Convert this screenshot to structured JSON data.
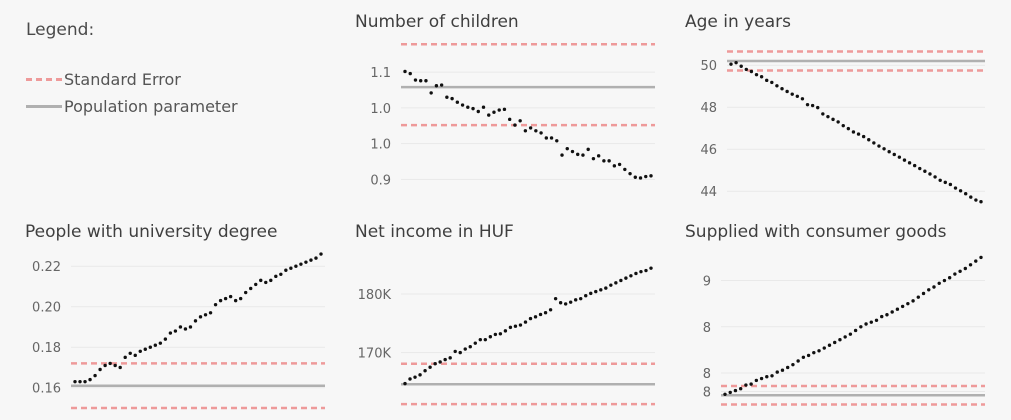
{
  "legend": {
    "title": "Legend:",
    "items": [
      {
        "label": "Standard Error",
        "style": "dashed",
        "color": "#ee9a9a"
      },
      {
        "label": "Population parameter",
        "style": "solid",
        "color": "#b0b0b0"
      }
    ]
  },
  "colors": {
    "background": "#f7f7f7",
    "gridline": "#e9e9e9",
    "se_line": "#ee9a9a",
    "pop_line": "#b0b0b0",
    "points": "#111111"
  },
  "chart_data": [
    {
      "type": "scatter",
      "title": "Number of children",
      "ylim": [
        0.86,
        1.095
      ],
      "yticks": [
        0.9,
        0.95,
        1.0,
        1.05
      ],
      "yticklabels": [
        "0.9",
        "1.0",
        "1.0",
        "1.1"
      ],
      "population_parameter": 1.029,
      "standard_error": [
        0.976,
        1.089
      ],
      "points": [
        1.051,
        1.048,
        1.039,
        1.038,
        1.038,
        1.021,
        1.031,
        1.032,
        1.015,
        1.013,
        1.008,
        1.004,
        1.001,
        0.999,
        0.995,
        1.001,
        0.99,
        0.994,
        0.997,
        0.998,
        0.984,
        0.976,
        0.982,
        0.968,
        0.972,
        0.968,
        0.965,
        0.958,
        0.958,
        0.954,
        0.934,
        0.943,
        0.939,
        0.935,
        0.934,
        0.942,
        0.929,
        0.933,
        0.926,
        0.926,
        0.919,
        0.921,
        0.914,
        0.908,
        0.903,
        0.902,
        0.904,
        0.905
      ]
    },
    {
      "type": "scatter",
      "title": "Age in years",
      "ylim": [
        43.2,
        51.2
      ],
      "yticks": [
        44,
        46,
        48,
        50
      ],
      "yticklabels": [
        "44",
        "46",
        "48",
        "50"
      ],
      "population_parameter": 50.2,
      "standard_error": [
        49.75,
        50.65
      ],
      "points": [
        50.05,
        50.12,
        49.95,
        49.8,
        49.7,
        49.55,
        49.45,
        49.28,
        49.18,
        49.02,
        48.88,
        48.75,
        48.62,
        48.52,
        48.4,
        48.12,
        48.08,
        47.98,
        47.68,
        47.55,
        47.42,
        47.3,
        47.12,
        46.98,
        46.82,
        46.72,
        46.6,
        46.45,
        46.3,
        46.15,
        46.02,
        45.88,
        45.75,
        45.62,
        45.48,
        45.35,
        45.22,
        45.08,
        44.95,
        44.82,
        44.68,
        44.52,
        44.42,
        44.32,
        44.15,
        44.02,
        43.88,
        43.72,
        43.58,
        43.5
      ]
    },
    {
      "type": "scatter",
      "title": "People with university degree",
      "ylim": [
        0.149,
        0.228
      ],
      "yticks": [
        0.16,
        0.18,
        0.2,
        0.22
      ],
      "yticklabels": [
        "0.16",
        "0.18",
        "0.20",
        "0.22"
      ],
      "population_parameter": 0.161,
      "standard_error": [
        0.15,
        0.172
      ],
      "points": [
        0.163,
        0.163,
        0.163,
        0.164,
        0.166,
        0.169,
        0.171,
        0.172,
        0.171,
        0.17,
        0.175,
        0.177,
        0.176,
        0.178,
        0.179,
        0.18,
        0.181,
        0.182,
        0.184,
        0.187,
        0.188,
        0.19,
        0.189,
        0.19,
        0.193,
        0.195,
        0.196,
        0.197,
        0.201,
        0.203,
        0.204,
        0.205,
        0.203,
        0.204,
        0.207,
        0.209,
        0.211,
        0.213,
        0.212,
        0.213,
        0.215,
        0.216,
        0.218,
        0.219,
        0.22,
        0.221,
        0.222,
        0.223,
        0.224,
        0.226
      ]
    },
    {
      "type": "scatter",
      "title": "Net income in HUF",
      "ylim": [
        160200,
        187500
      ],
      "yticks": [
        170000,
        180000
      ],
      "yticklabels": [
        "170K",
        "180K"
      ],
      "population_parameter": 164600,
      "standard_error": [
        161200,
        168100
      ],
      "points": [
        164700,
        165500,
        165800,
        166200,
        166900,
        167500,
        168100,
        168400,
        168800,
        169100,
        170200,
        170000,
        170600,
        171000,
        171600,
        172200,
        172200,
        172700,
        173100,
        173200,
        173700,
        174300,
        174500,
        174700,
        175200,
        175800,
        176100,
        176500,
        176800,
        177300,
        179200,
        178500,
        178300,
        178600,
        179000,
        179200,
        179700,
        180100,
        180400,
        180700,
        181000,
        181500,
        181900,
        182300,
        182700,
        183100,
        183500,
        183800,
        184000,
        184400
      ]
    },
    {
      "type": "scatter",
      "title": "Supplied with consumer goods",
      "ylim": [
        7.6,
        9.33
      ],
      "yticks": [
        7.8,
        8.0,
        8.5,
        9.0
      ],
      "yticklabels": [
        "8",
        "8",
        "8",
        "9"
      ],
      "population_parameter": 7.76,
      "standard_error": [
        7.66,
        7.86
      ],
      "points": [
        7.77,
        7.79,
        7.81,
        7.83,
        7.87,
        7.88,
        7.92,
        7.94,
        7.96,
        7.97,
        8.01,
        8.03,
        8.06,
        8.09,
        8.13,
        8.17,
        8.19,
        8.22,
        8.24,
        8.27,
        8.3,
        8.33,
        8.36,
        8.39,
        8.42,
        8.46,
        8.5,
        8.53,
        8.55,
        8.57,
        8.61,
        8.63,
        8.66,
        8.69,
        8.72,
        8.75,
        8.78,
        8.82,
        8.86,
        8.9,
        8.93,
        8.97,
        9.0,
        9.03,
        9.07,
        9.1,
        9.13,
        9.17,
        9.21,
        9.25
      ]
    }
  ]
}
